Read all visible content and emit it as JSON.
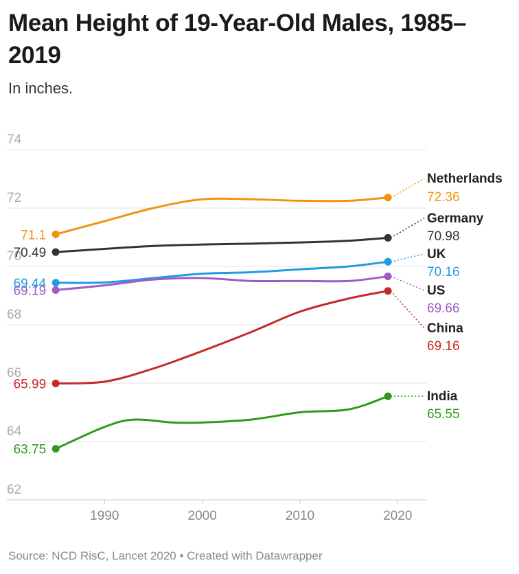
{
  "title": "Mean Height of 19-Year-Old Males, 1985–2019",
  "subtitle": "In inches.",
  "footer": "Source: NCD RisC, Lancet 2020 • Created with Datawrapper",
  "chart_data": {
    "type": "line",
    "title": "Mean Height of 19-Year-Old Males, 1985–2019",
    "ylabel": "In inches.",
    "xlabel": "",
    "xlim": [
      1980,
      2023
    ],
    "ylim": [
      62,
      74
    ],
    "x_ticks": [
      1990,
      2000,
      2010,
      2020
    ],
    "y_ticks": [
      62,
      64,
      66,
      68,
      70,
      72,
      74
    ],
    "grid": true,
    "series": [
      {
        "name": "Netherlands",
        "color": "#f0940f",
        "start_label": "71.1",
        "end_label": "72.36",
        "x": [
          1985,
          1990,
          1995,
          2000,
          2005,
          2010,
          2015,
          2019
        ],
        "values": [
          71.1,
          71.55,
          72.0,
          72.3,
          72.3,
          72.25,
          72.25,
          72.36
        ]
      },
      {
        "name": "Germany",
        "color": "#333333",
        "start_label": "70.49",
        "end_label": "70.98",
        "x": [
          1985,
          1990,
          1995,
          2000,
          2005,
          2010,
          2015,
          2019
        ],
        "values": [
          70.49,
          70.6,
          70.7,
          70.75,
          70.78,
          70.82,
          70.88,
          70.98
        ]
      },
      {
        "name": "UK",
        "color": "#1f9be0",
        "start_label": "69.44",
        "end_label": "70.16",
        "x": [
          1985,
          1990,
          1995,
          2000,
          2005,
          2010,
          2015,
          2019
        ],
        "values": [
          69.44,
          69.45,
          69.6,
          69.75,
          69.8,
          69.9,
          70.0,
          70.16
        ]
      },
      {
        "name": "US",
        "color": "#a25ac4",
        "start_label": "69.19",
        "end_label": "69.66",
        "x": [
          1985,
          1990,
          1995,
          2000,
          2005,
          2010,
          2015,
          2019
        ],
        "values": [
          69.19,
          69.35,
          69.55,
          69.6,
          69.5,
          69.5,
          69.5,
          69.66
        ]
      },
      {
        "name": "China",
        "color": "#c62929",
        "start_label": "65.99",
        "end_label": "69.16",
        "x": [
          1985,
          1990,
          1995,
          2000,
          2005,
          2010,
          2015,
          2019
        ],
        "values": [
          65.99,
          66.05,
          66.5,
          67.1,
          67.75,
          68.45,
          68.9,
          69.16
        ]
      },
      {
        "name": "India",
        "color": "#2e9a19",
        "start_label": "63.75",
        "end_label": "65.55",
        "x": [
          1985,
          1990,
          1993,
          1997,
          2000,
          2005,
          2010,
          2015,
          2019
        ],
        "values": [
          63.75,
          64.5,
          64.75,
          64.65,
          64.65,
          64.75,
          65.0,
          65.1,
          65.55
        ]
      }
    ]
  }
}
